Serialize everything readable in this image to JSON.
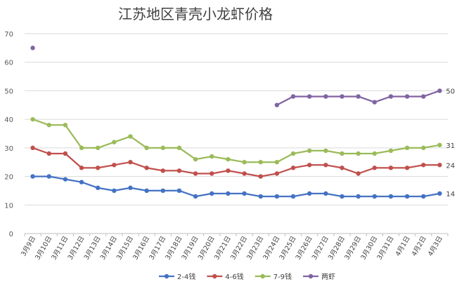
{
  "chart_data": {
    "type": "line",
    "title": "江苏地区青壳小龙虾价格",
    "xlabel": "",
    "ylabel": "",
    "ylim": [
      0,
      70
    ],
    "yticks": [
      "0",
      "10",
      "20",
      "30",
      "40",
      "50",
      "60",
      "70"
    ],
    "grid": true,
    "legend_position": "bottom",
    "categories": [
      "3月9日",
      "3月10日",
      "3月11日",
      "3月12日",
      "3月13日",
      "3月14日",
      "3月15日",
      "3月16日",
      "3月17日",
      "3月18日",
      "3月19日",
      "3月20日",
      "3月21日",
      "3月22日",
      "3月23日",
      "3月24日",
      "3月25日",
      "3月26日",
      "3月27日",
      "3月28日",
      "3月29日",
      "3月30日",
      "3月31日",
      "4月1日",
      "4月2日",
      "4月3日"
    ],
    "series": [
      {
        "name": "2-4钱",
        "color": "#4472c4",
        "values": [
          20,
          20,
          19,
          18,
          16,
          15,
          16,
          15,
          15,
          15,
          13,
          14,
          14,
          14,
          13,
          13,
          13,
          14,
          14,
          13,
          13,
          13,
          13,
          13,
          13,
          14
        ],
        "end_label": "14"
      },
      {
        "name": "4-6钱",
        "color": "#c0504d",
        "values": [
          30,
          28,
          28,
          23,
          23,
          24,
          25,
          23,
          22,
          22,
          21,
          21,
          22,
          21,
          20,
          21,
          23,
          24,
          24,
          23,
          21,
          23,
          23,
          23,
          24,
          24
        ],
        "end_label": "24"
      },
      {
        "name": "7-9钱",
        "color": "#9bbb59",
        "values": [
          40,
          38,
          38,
          30,
          30,
          32,
          34,
          30,
          30,
          30,
          26,
          27,
          26,
          25,
          25,
          25,
          28,
          29,
          29,
          28,
          28,
          28,
          29,
          30,
          30,
          31
        ],
        "end_label": "31"
      },
      {
        "name": "两虾",
        "color": "#8064a2",
        "values": [
          65,
          null,
          null,
          null,
          null,
          null,
          null,
          null,
          null,
          null,
          null,
          null,
          null,
          null,
          null,
          45,
          48,
          48,
          48,
          48,
          48,
          46,
          48,
          48,
          48,
          50
        ],
        "end_label": "50"
      }
    ]
  }
}
